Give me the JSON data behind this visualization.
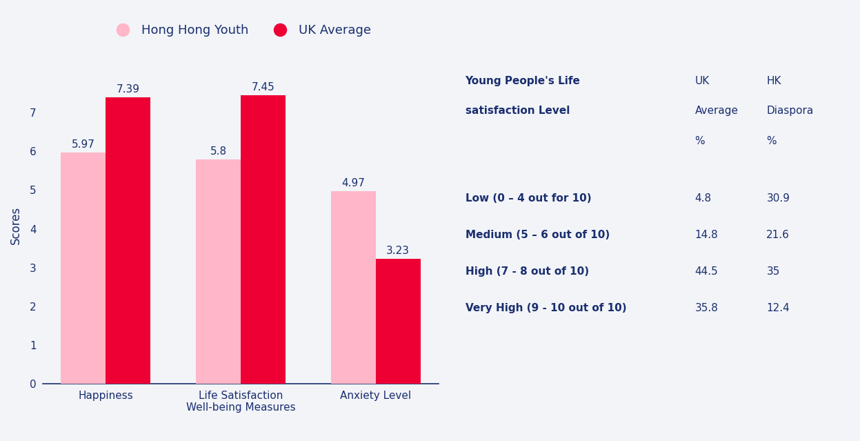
{
  "categories": [
    "Happiness",
    "Life Satisfaction\nWell-being Measures",
    "Anxiety Level"
  ],
  "hk_youth": [
    5.97,
    5.8,
    4.97
  ],
  "uk_avg": [
    7.39,
    7.45,
    3.23
  ],
  "hk_color": "#FFB6C8",
  "uk_color": "#EE0034",
  "ylabel": "Scores",
  "ylim": [
    0,
    8.2
  ],
  "yticks": [
    0,
    1,
    2,
    3,
    4,
    5,
    6,
    7
  ],
  "legend_hk": "Hong Hong Youth",
  "legend_uk": "UK Average",
  "background_color": "#F2F4F8",
  "chart_bg": "#FFFFFF",
  "bar_label_color": "#1a2e6e",
  "bar_label_fontsize": 11,
  "table_rows": [
    [
      "Low (0 – 4 out for 10)",
      "4.8",
      "30.9"
    ],
    [
      "Medium (5 – 6 out of 10)",
      "14.8",
      "21.6"
    ],
    [
      "High (7 - 8 out of 10)",
      "44.5",
      "35"
    ],
    [
      "Very High (9 - 10 out of 10)",
      "35.8",
      "12.4"
    ]
  ],
  "table_text_color": "#1a2e6e",
  "axis_color": "#1a2e6e",
  "axis_label_color": "#1a2e6e",
  "tick_label_color": "#1a2e6e"
}
